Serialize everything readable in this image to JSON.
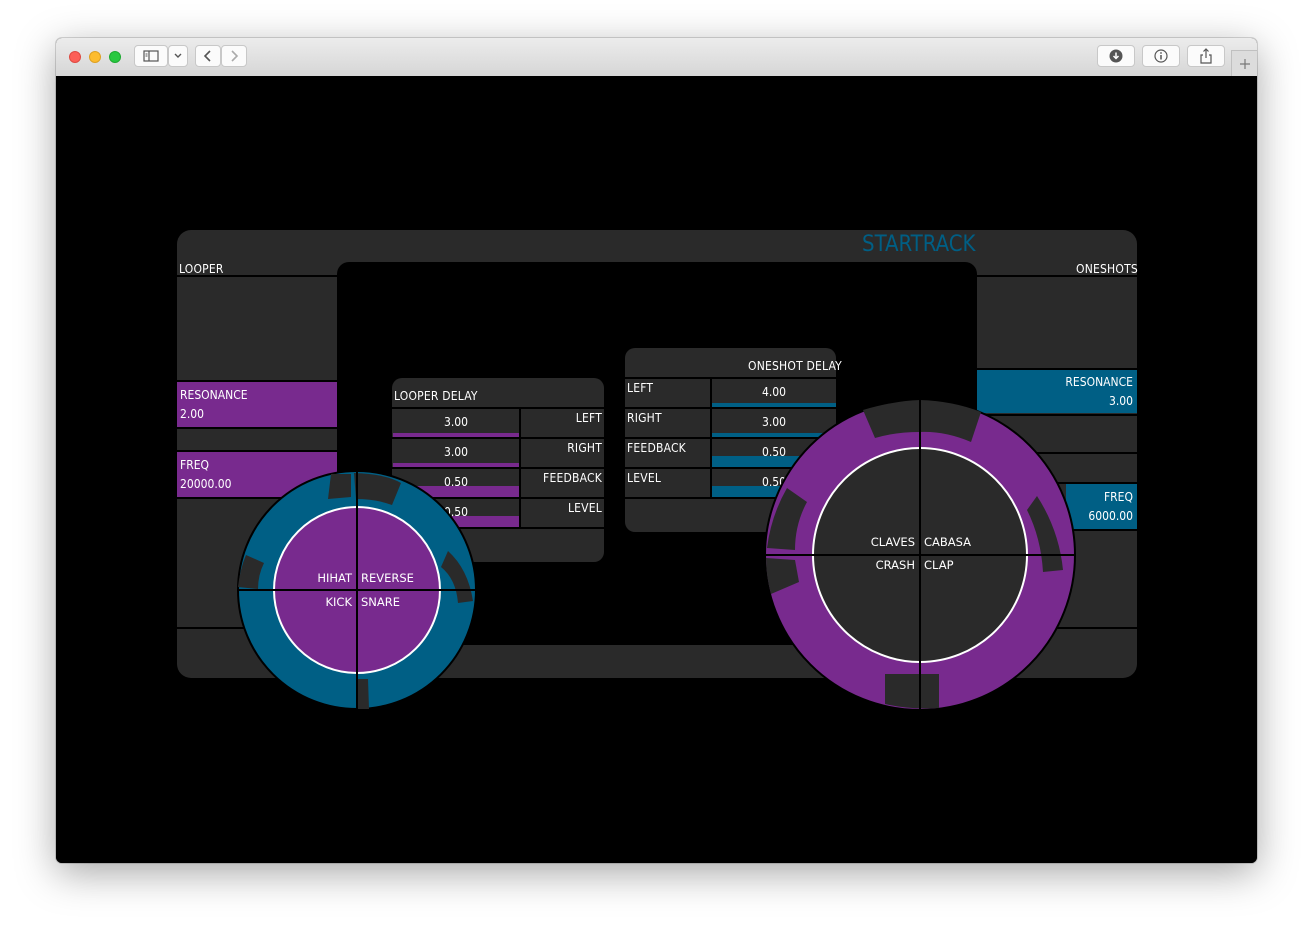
{
  "app": {
    "title": "STARTRACK"
  },
  "browser": {
    "icons": [
      "close-light",
      "minimize-light",
      "zoom-light",
      "sidebar-icon",
      "chevron-down-icon",
      "back-icon",
      "forward-icon",
      "download-icon",
      "info-icon",
      "share-icon",
      "new-tab-icon"
    ]
  },
  "colors": {
    "purple": "#782a8e",
    "blue": "#005f85",
    "panel": "#2a2a2a",
    "background": "#000000"
  },
  "looper": {
    "title": "LOOPER",
    "resonance": {
      "label": "RESONANCE",
      "value": "2.00"
    },
    "freq": {
      "label": "FREQ",
      "value": "20000.00"
    }
  },
  "oneshots": {
    "title": "ONESHOTS",
    "resonance": {
      "label": "RESONANCE",
      "value": "3.00"
    },
    "freq": {
      "label": "FREQ",
      "value": "6000.00"
    }
  },
  "looper_delay": {
    "title": "LOOPER DELAY",
    "rows": [
      {
        "label": "LEFT",
        "value": "3.00",
        "level": 1.0
      },
      {
        "label": "RIGHT",
        "value": "3.00",
        "level": 1.0
      },
      {
        "label": "FEEDBACK",
        "value": "0.50",
        "level": 1.0
      },
      {
        "label": "LEVEL",
        "value": "0.50",
        "level": 1.0
      }
    ]
  },
  "oneshot_delay": {
    "title": "ONESHOT DELAY",
    "rows": [
      {
        "label": "LEFT",
        "value": "4.00",
        "level": 1.0
      },
      {
        "label": "RIGHT",
        "value": "3.00",
        "level": 1.0
      },
      {
        "label": "FEEDBACK",
        "value": "0.50",
        "level": 1.0
      },
      {
        "label": "LEVEL",
        "value": "0.50",
        "level": 1.0
      }
    ]
  },
  "looper_pad": {
    "top_left": "HIHAT",
    "top_right": "REVERSE",
    "bottom_left": "KICK",
    "bottom_right": "SNARE"
  },
  "oneshot_pad": {
    "top_left": "CLAVES",
    "top_right": "CABASA",
    "bottom_left": "CRASH",
    "bottom_right": "CLAP"
  }
}
